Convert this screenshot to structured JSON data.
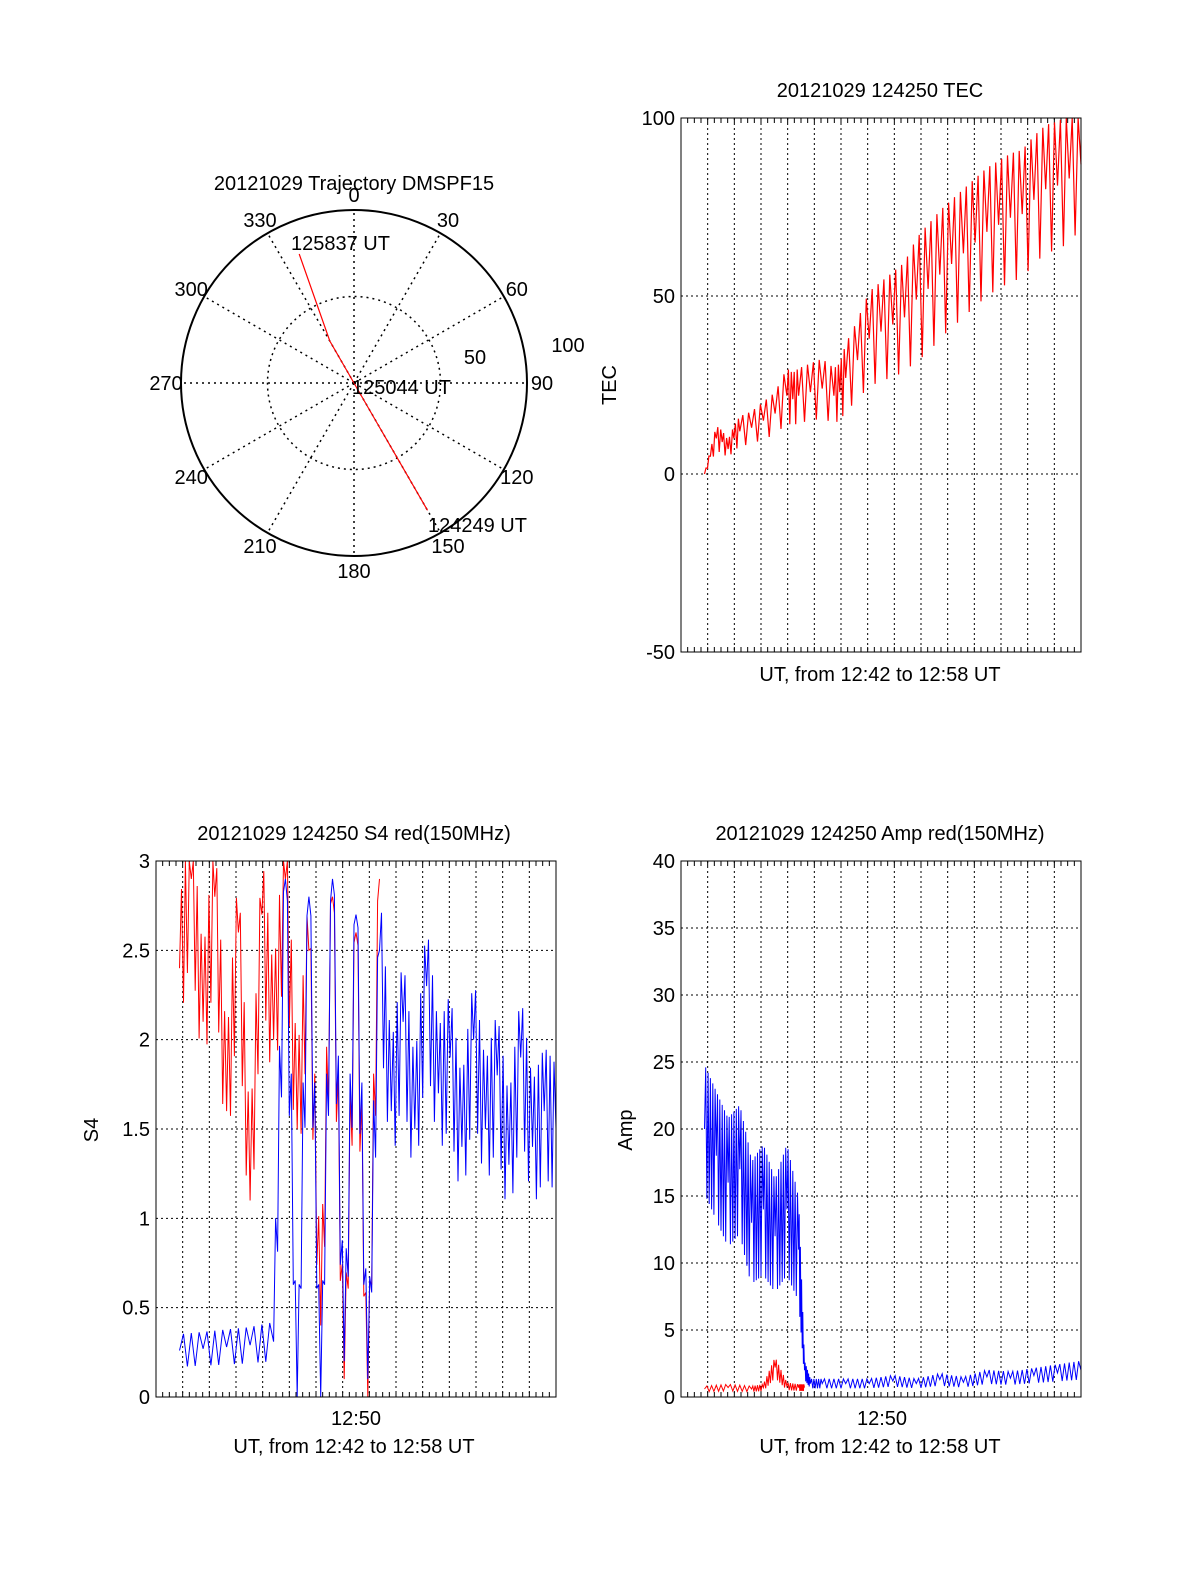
{
  "chart_data": [
    {
      "type": "polar",
      "title": "20121029 Trajectory DMSPF15",
      "angle_labels": [
        "0",
        "30",
        "60",
        "90",
        "120",
        "150",
        "180",
        "210",
        "240",
        "270",
        "300",
        "330"
      ],
      "radius_labels": [
        "50",
        "100"
      ],
      "rlim": [
        0,
        100
      ],
      "grid": true,
      "track": {
        "color": "#ff0000",
        "points": [
          {
            "az": 337,
            "r": 81
          },
          {
            "az": 330,
            "r": 28
          },
          {
            "az": 330,
            "r": 1
          },
          {
            "az": 150,
            "r": 28
          },
          {
            "az": 150,
            "r": 85
          }
        ]
      },
      "annotations": [
        "125837 UT",
        "125044 UT",
        "124249 UT"
      ]
    },
    {
      "type": "line",
      "title": "20121029 124250 TEC",
      "xlabel": "UT, from 12:42 to 12:58 UT",
      "ylabel": "TEC",
      "xlim": [
        12.68,
        13.02
      ],
      "ylim": [
        -50,
        100
      ],
      "yticks": [
        -50,
        0,
        50,
        100
      ],
      "grid": true,
      "series": [
        {
          "color": "#ff0000",
          "x": [
            12.7,
            12.705,
            12.71,
            12.715,
            12.72,
            12.725,
            12.73,
            12.74,
            12.75,
            12.76,
            12.77,
            12.775,
            12.78,
            12.79,
            12.8,
            12.81,
            12.815,
            12.82,
            12.83,
            12.84,
            12.85,
            12.86,
            12.87,
            12.88,
            12.89,
            12.9,
            12.91,
            12.92,
            12.93,
            12.94,
            12.95,
            12.96,
            12.97,
            12.98,
            12.99,
            13.0,
            13.01,
            13.02
          ],
          "y": [
            0,
            5,
            10,
            9,
            7,
            10,
            12,
            13,
            15,
            17,
            22,
            21,
            22,
            23,
            24,
            22,
            23,
            27,
            32,
            38,
            40,
            42,
            44,
            49,
            52,
            56,
            59,
            62,
            65,
            68,
            70,
            72,
            73,
            77,
            80,
            81,
            83,
            87
          ]
        }
      ]
    },
    {
      "type": "line",
      "title": "20121029 124250 S4 red(150MHz)",
      "xlabel": "UT, from 12:42 to 12:58 UT",
      "ylabel": "S4",
      "xtick_labels": [
        "12:50"
      ],
      "xlim": [
        12.68,
        13.02
      ],
      "ylim": [
        0,
        3
      ],
      "yticks": [
        0,
        0.5,
        1,
        1.5,
        2,
        2.5,
        3
      ],
      "grid": true,
      "series": [
        {
          "color": "#ff0000",
          "x": [
            12.7,
            12.71,
            12.72,
            12.73,
            12.74,
            12.75,
            12.76,
            12.77,
            12.78,
            12.79,
            12.8,
            12.81,
            12.82,
            12.83,
            12.84,
            12.85,
            12.86,
            12.87
          ],
          "y": [
            2.4,
            2.9,
            2.1,
            2.8,
            1.6,
            2.6,
            1.1,
            2.7,
            2.0,
            2.9,
            1.5,
            2.5,
            0.4,
            2.8,
            0.1,
            2.6,
            0.0,
            2.9
          ]
        },
        {
          "color": "#0000ff",
          "x": [
            12.7,
            12.72,
            12.74,
            12.76,
            12.78,
            12.79,
            12.8,
            12.81,
            12.82,
            12.83,
            12.84,
            12.85,
            12.86,
            12.87,
            12.88,
            12.89,
            12.9,
            12.91,
            12.92,
            12.93,
            12.94,
            12.95,
            12.96,
            12.97,
            12.98,
            12.99,
            13.0,
            13.01,
            13.02
          ],
          "y": [
            0.26,
            0.27,
            0.28,
            0.29,
            0.31,
            2.9,
            0.0,
            2.8,
            0.0,
            2.9,
            0.2,
            2.7,
            0.1,
            2.5,
            1.6,
            2.1,
            1.5,
            2.3,
            1.7,
            1.9,
            1.4,
            2.0,
            1.5,
            1.8,
            1.3,
            1.9,
            1.4,
            1.6,
            1.5
          ]
        }
      ]
    },
    {
      "type": "line",
      "title": "20121029 124250 Amp red(150MHz)",
      "xlabel": "UT, from 12:42 to 12:58 UT",
      "ylabel": "Amp",
      "xtick_labels": [
        "12:50"
      ],
      "xlim": [
        12.68,
        13.02
      ],
      "ylim": [
        0,
        40
      ],
      "yticks": [
        0,
        5,
        10,
        15,
        20,
        25,
        30,
        35,
        40
      ],
      "grid": true,
      "series": [
        {
          "color": "#0000ff",
          "x": [
            12.7,
            12.71,
            12.72,
            12.73,
            12.74,
            12.75,
            12.76,
            12.77,
            12.78,
            12.785,
            12.79,
            12.8,
            12.82,
            12.84,
            12.86,
            12.88,
            12.9,
            12.92,
            12.94,
            12.96,
            12.98,
            13.0,
            13.02
          ],
          "y": [
            20,
            18,
            16,
            17,
            13,
            14,
            12,
            14,
            11,
            2,
            1,
            1,
            1,
            1,
            1.2,
            1,
            1.3,
            1.1,
            1.5,
            1.4,
            1.6,
            1.8,
            2
          ]
        },
        {
          "color": "#ff0000",
          "x": [
            12.7,
            12.72,
            12.74,
            12.75,
            12.76,
            12.77,
            12.78,
            12.785
          ],
          "y": [
            0.6,
            0.7,
            0.6,
            0.7,
            2.2,
            0.8,
            0.7,
            0.7
          ]
        }
      ]
    }
  ]
}
